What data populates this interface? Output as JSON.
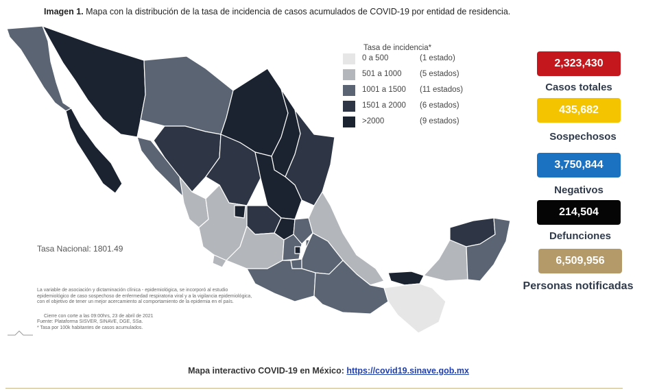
{
  "caption": {
    "bold": "Imagen 1.",
    "text": " Mapa con la distribución de la tasa de incidencia de casos acumulados de COVID-19 por entidad de residencia."
  },
  "legend": {
    "title": "Tasa de incidencia*",
    "items": [
      {
        "range": "0 a   500",
        "count": "(1 estado)",
        "color": "#e6e6e6"
      },
      {
        "range": "501 a  1000",
        "count": "(5 estados)",
        "color": "#b3b6bb"
      },
      {
        "range": "1001 a  1500",
        "count": "(11 estados)",
        "color": "#5a6473"
      },
      {
        "range": "1501 a  2000",
        "count": "(6 estados)",
        "color": "#2e3645"
      },
      {
        "range": ">2000",
        "count": "(9 estados)",
        "color": "#1b2230"
      }
    ]
  },
  "tasa_nacional": "Tasa Nacional: 1801.49",
  "notes": {
    "line1": "La variable de asociación y dictaminación clínica - epidemiológica, se incorporó al estudio",
    "line2": "epidemiológico de caso sospechoso de enfermedad respiratoria viral y a la vigilancia epidemiológica,",
    "line3": "con el objetivo de tener un mejor acercamiento al comportamiento de la epidemia en el país.",
    "cierre": "Cierre con corte a las 09:00hrs, 23 de abril de 2021",
    "fuente": "Fuente: Plataforma SISVER, SINAVE, DGE, SSa.",
    "tasa_note": "* Tasa por 100k habitantes de casos acumulados."
  },
  "stats": [
    {
      "value": "2,323,430",
      "label": "Casos totales",
      "bg": "#c4171d",
      "fg": "#ffffff"
    },
    {
      "value": "435,682",
      "label": "Sospechosos",
      "bg": "#f5c400",
      "fg": "#ffffff"
    },
    {
      "value": "3,750,844",
      "label": "Negativos",
      "bg": "#1a72c0",
      "fg": "#ffffff"
    },
    {
      "value": "214,504",
      "label": "Defunciones",
      "bg": "#050505",
      "fg": "#ffffff"
    },
    {
      "value": "6,509,956",
      "label": "Personas notificadas",
      "bg": "#b49a69",
      "fg": "#ffffff"
    }
  ],
  "footer": {
    "text": "Mapa interactivo COVID-19 en México: ",
    "link": "https://covid19.sinave.gob.mx"
  }
}
